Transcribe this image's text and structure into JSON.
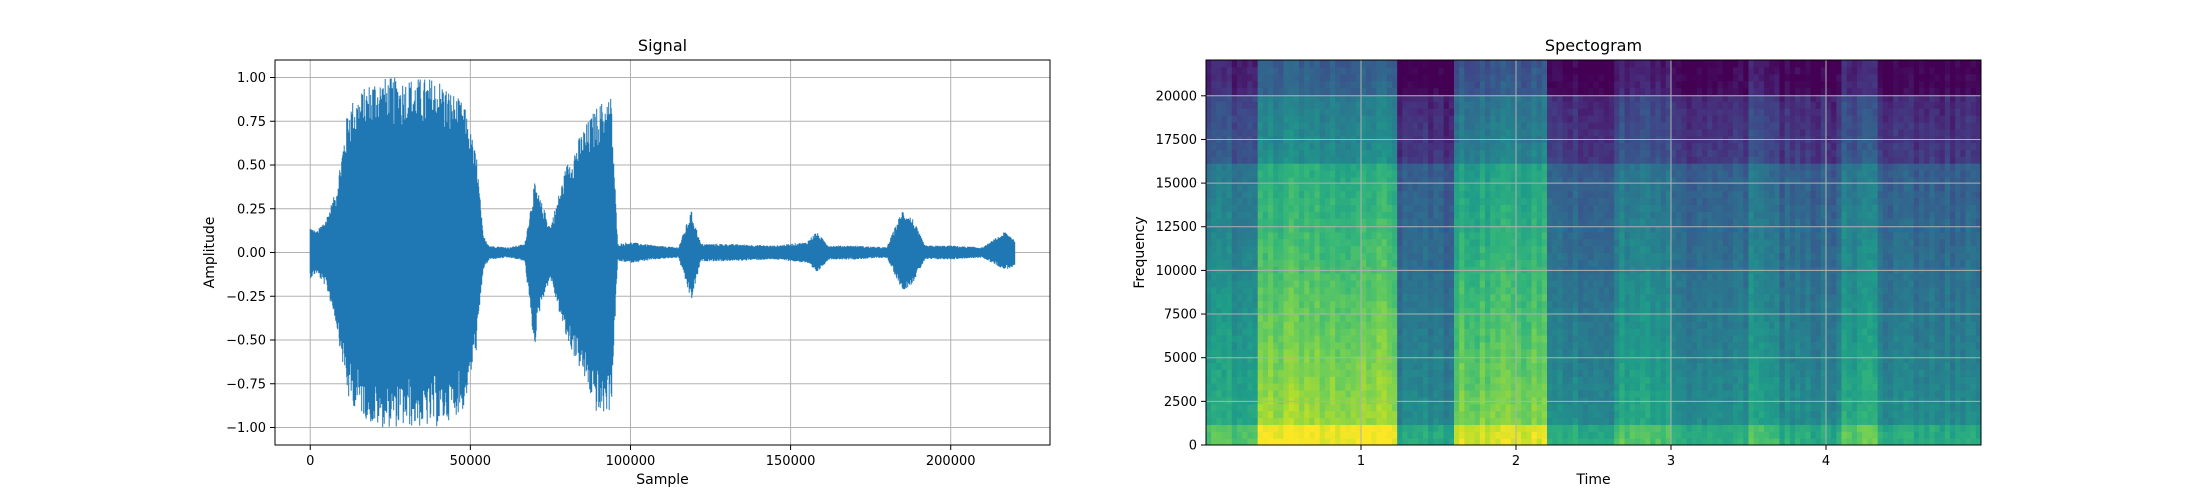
{
  "chart_data": [
    {
      "type": "line",
      "title": "Signal",
      "xlabel": "Sample",
      "ylabel": "Amplitude",
      "xlim": [
        -11000,
        231000
      ],
      "ylim": [
        -1.1,
        1.1
      ],
      "xticks": [
        0,
        50000,
        100000,
        150000,
        200000
      ],
      "xtick_labels": [
        "0",
        "50000",
        "100000",
        "150000",
        "200000"
      ],
      "yticks": [
        1.0,
        0.75,
        0.5,
        0.25,
        0.0,
        -0.25,
        -0.5,
        -0.75,
        -1.0
      ],
      "ytick_labels": [
        "1.00",
        "0.75",
        "0.50",
        "0.25",
        "0.00",
        "−0.25",
        "−0.50",
        "−0.75",
        "−1.00"
      ],
      "grid": true,
      "color": "#1f77b4",
      "series": [
        {
          "x": [
            0,
            2000,
            5000,
            8000,
            12000,
            20000,
            30000,
            40000,
            48000,
            52000,
            54000,
            56000,
            62000,
            67000,
            70000,
            72000,
            75000,
            80000,
            85000,
            90000,
            94000,
            96000,
            100000,
            108000,
            115000,
            119000,
            122000,
            130000,
            145000,
            155000,
            158000,
            162000,
            170000,
            180000,
            185000,
            188000,
            192000,
            200000,
            210000,
            217000,
            220000
          ],
          "upper": [
            0.15,
            0.12,
            0.2,
            0.35,
            0.85,
            1.0,
            1.0,
            1.0,
            0.85,
            0.55,
            0.1,
            0.04,
            0.03,
            0.05,
            0.4,
            0.3,
            0.15,
            0.5,
            0.7,
            0.85,
            0.9,
            0.05,
            0.06,
            0.04,
            0.03,
            0.24,
            0.05,
            0.05,
            0.04,
            0.06,
            0.12,
            0.04,
            0.04,
            0.03,
            0.25,
            0.2,
            0.04,
            0.04,
            0.03,
            0.12,
            0.08
          ],
          "lower": [
            -0.15,
            -0.12,
            -0.2,
            -0.4,
            -0.85,
            -1.0,
            -1.0,
            -1.0,
            -0.9,
            -0.55,
            -0.1,
            -0.04,
            -0.03,
            -0.05,
            -0.55,
            -0.3,
            -0.15,
            -0.5,
            -0.7,
            -0.95,
            -0.9,
            -0.05,
            -0.06,
            -0.04,
            -0.03,
            -0.28,
            -0.05,
            -0.05,
            -0.04,
            -0.06,
            -0.12,
            -0.04,
            -0.04,
            -0.03,
            -0.22,
            -0.18,
            -0.04,
            -0.04,
            -0.03,
            -0.1,
            -0.08
          ]
        }
      ]
    },
    {
      "type": "heatmap",
      "title": "Spectogram",
      "xlabel": "Time",
      "ylabel": "Frequency",
      "xlim": [
        0,
        5.0
      ],
      "ylim": [
        0,
        22050
      ],
      "xticks": [
        1,
        2,
        3,
        4
      ],
      "xtick_labels": [
        "1",
        "2",
        "3",
        "4"
      ],
      "yticks": [
        0,
        2500,
        5000,
        7500,
        10000,
        12500,
        15000,
        17500,
        20000
      ],
      "ytick_labels": [
        "0",
        "2500",
        "5000",
        "7500",
        "10000",
        "12500",
        "15000",
        "17500",
        "20000"
      ],
      "grid": true,
      "colormap": "viridis",
      "time_segments": [
        {
          "start": 0.0,
          "end": 0.35,
          "level": 0.62
        },
        {
          "start": 0.35,
          "end": 1.25,
          "level": 0.88
        },
        {
          "start": 1.25,
          "end": 1.6,
          "level": 0.48
        },
        {
          "start": 1.6,
          "end": 2.2,
          "level": 0.82
        },
        {
          "start": 2.2,
          "end": 2.65,
          "level": 0.5
        },
        {
          "start": 2.65,
          "end": 3.0,
          "level": 0.62
        },
        {
          "start": 3.0,
          "end": 3.5,
          "level": 0.5
        },
        {
          "start": 3.5,
          "end": 3.7,
          "level": 0.6
        },
        {
          "start": 3.7,
          "end": 4.1,
          "level": 0.5
        },
        {
          "start": 4.1,
          "end": 4.35,
          "level": 0.64
        },
        {
          "start": 4.35,
          "end": 5.0,
          "level": 0.5
        }
      ]
    }
  ]
}
